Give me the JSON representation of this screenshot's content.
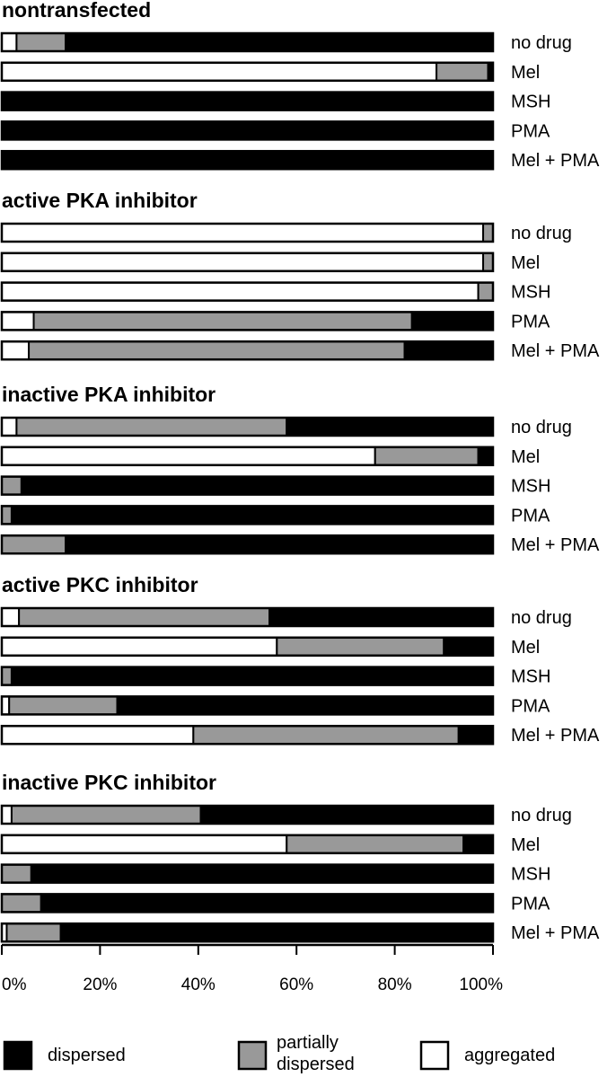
{
  "chart_data": {
    "type": "bar",
    "orientation": "horizontal",
    "stacked": true,
    "segment_order": [
      "aggregated",
      "partially dispersed",
      "dispersed"
    ],
    "colors": {
      "aggregated": "#ffffff",
      "partially dispersed": "#999999",
      "dispersed": "#000000"
    },
    "xlim": [
      0,
      100
    ],
    "xticks": [
      "0%",
      "20%",
      "40%",
      "60%",
      "80%",
      "100%"
    ],
    "grid": false,
    "legend_position": "bottom",
    "legend": [
      {
        "key": "dispersed",
        "label_lines": [
          "dispersed"
        ]
      },
      {
        "key": "partially dispersed",
        "label_lines": [
          "partially",
          "dispersed"
        ]
      },
      {
        "key": "aggregated",
        "label_lines": [
          "aggregated"
        ]
      }
    ],
    "groups": [
      {
        "title": "nontransfected",
        "rows": [
          {
            "label": "no drug",
            "aggregated": 3,
            "partially dispersed": 10,
            "dispersed": 87
          },
          {
            "label": "Mel",
            "aggregated": 88.5,
            "partially dispersed": 10.5,
            "dispersed": 1
          },
          {
            "label": "MSH",
            "aggregated": 0,
            "partially dispersed": 0,
            "dispersed": 100
          },
          {
            "label": "PMA",
            "aggregated": 0,
            "partially dispersed": 0,
            "dispersed": 100
          },
          {
            "label": "Mel + PMA",
            "aggregated": 0,
            "partially dispersed": 0,
            "dispersed": 100
          }
        ]
      },
      {
        "title": "active PKA inhibitor",
        "rows": [
          {
            "label": "no drug",
            "aggregated": 98,
            "partially dispersed": 2,
            "dispersed": 0
          },
          {
            "label": "Mel",
            "aggregated": 98,
            "partially dispersed": 2,
            "dispersed": 0
          },
          {
            "label": "MSH",
            "aggregated": 97,
            "partially dispersed": 3,
            "dispersed": 0
          },
          {
            "label": "PMA",
            "aggregated": 6.5,
            "partially dispersed": 77,
            "dispersed": 16.5
          },
          {
            "label": "Mel + PMA",
            "aggregated": 5.5,
            "partially dispersed": 76.5,
            "dispersed": 18
          }
        ]
      },
      {
        "title": "inactive PKA inhibitor",
        "rows": [
          {
            "label": "no drug",
            "aggregated": 3,
            "partially dispersed": 55,
            "dispersed": 42
          },
          {
            "label": "Mel",
            "aggregated": 76,
            "partially dispersed": 21,
            "dispersed": 3
          },
          {
            "label": "MSH",
            "aggregated": 0,
            "partially dispersed": 4,
            "dispersed": 96
          },
          {
            "label": "PMA",
            "aggregated": 0,
            "partially dispersed": 2,
            "dispersed": 98
          },
          {
            "label": "Mel + PMA",
            "aggregated": 0,
            "partially dispersed": 13,
            "dispersed": 87
          }
        ]
      },
      {
        "title": "active PKC inhibitor",
        "rows": [
          {
            "label": "no drug",
            "aggregated": 3.5,
            "partially dispersed": 51,
            "dispersed": 45.5
          },
          {
            "label": "Mel",
            "aggregated": 56,
            "partially dispersed": 34,
            "dispersed": 10
          },
          {
            "label": "MSH",
            "aggregated": 0,
            "partially dispersed": 2,
            "dispersed": 98
          },
          {
            "label": "PMA",
            "aggregated": 1.5,
            "partially dispersed": 22,
            "dispersed": 76.5
          },
          {
            "label": "Mel + PMA",
            "aggregated": 39,
            "partially dispersed": 54,
            "dispersed": 7
          }
        ]
      },
      {
        "title": "inactive PKC inhibitor",
        "rows": [
          {
            "label": "no drug",
            "aggregated": 2,
            "partially dispersed": 38.5,
            "dispersed": 59.5
          },
          {
            "label": "Mel",
            "aggregated": 58,
            "partially dispersed": 36,
            "dispersed": 6
          },
          {
            "label": "MSH",
            "aggregated": 0,
            "partially dispersed": 6,
            "dispersed": 94
          },
          {
            "label": "PMA",
            "aggregated": 0,
            "partially dispersed": 8,
            "dispersed": 92
          },
          {
            "label": "Mel + PMA",
            "aggregated": 1,
            "partially dispersed": 11,
            "dispersed": 88
          }
        ]
      }
    ]
  }
}
